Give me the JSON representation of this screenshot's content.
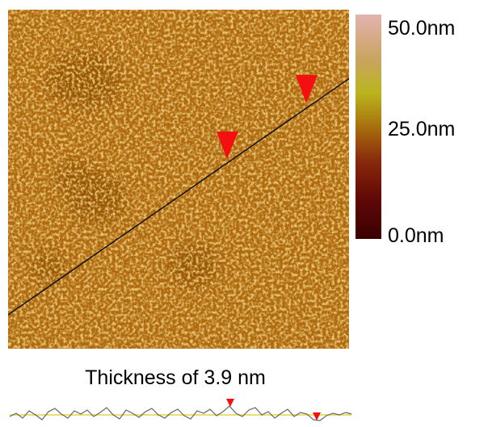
{
  "colorbar": {
    "top_label": "50.0nm",
    "middle_label": "25.0nm",
    "bottom_label": "0.0nm"
  },
  "caption": "Thickness of 3.9 nm"
}
